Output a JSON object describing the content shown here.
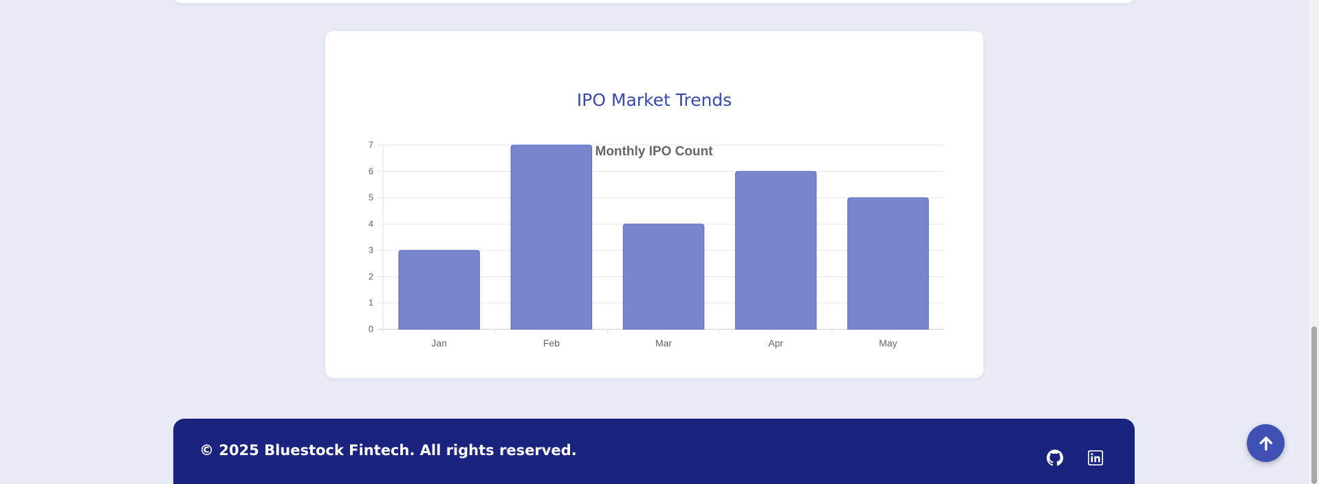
{
  "card": {
    "title": "IPO Market Trends"
  },
  "chart_data": {
    "type": "bar",
    "title": "Monthly IPO Count",
    "categories": [
      "Jan",
      "Feb",
      "Mar",
      "Apr",
      "May"
    ],
    "values": [
      3,
      7,
      4,
      6,
      5
    ],
    "ylim": [
      0,
      7
    ],
    "yticks": [
      "0",
      "1",
      "2",
      "3",
      "4",
      "5",
      "6",
      "7"
    ],
    "grid": true,
    "bar_color": "#7986cb",
    "bar_border": "#5c6bc0"
  },
  "footer": {
    "copyright": "© 2025 Bluestock Fintech. All rights reserved.",
    "links": [
      {
        "icon": "github-icon"
      },
      {
        "icon": "linkedin-icon"
      }
    ]
  },
  "scroll_top": {
    "icon": "arrow-up-icon"
  },
  "colors": {
    "page_bg": "#e8eaf6",
    "accent": "#3f51b5",
    "footer_bg": "#1a237e"
  }
}
